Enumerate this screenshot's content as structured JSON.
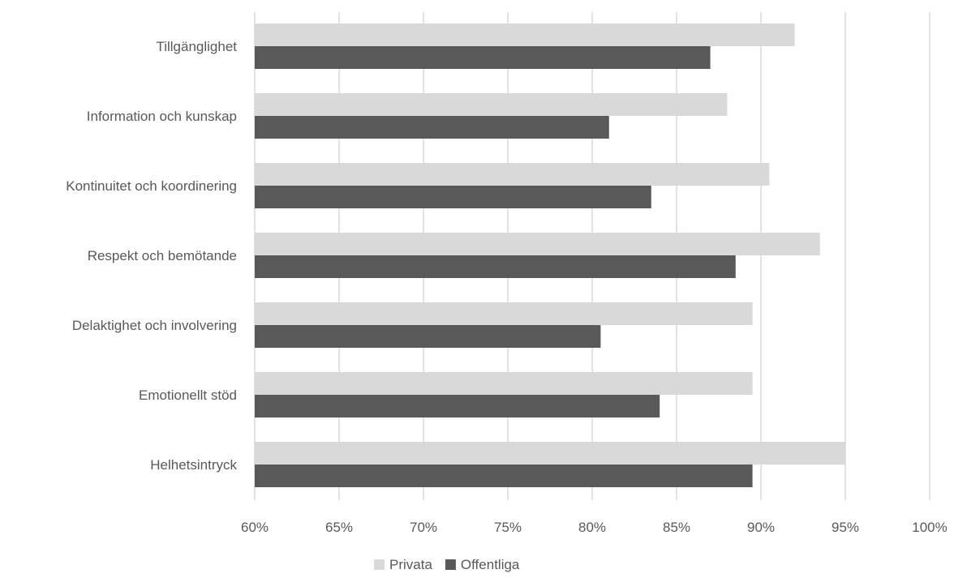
{
  "chart_data": {
    "type": "bar",
    "orientation": "horizontal",
    "categories": [
      "Tillgänglighet",
      "Information och kunskap",
      "Kontinuitet och koordinering",
      "Respekt och bemötande",
      "Delaktighet och involvering",
      "Emotionellt stöd",
      "Helhetsintryck"
    ],
    "series": [
      {
        "name": "Privata",
        "color": "#d9d9d9",
        "values": [
          92,
          88,
          90.5,
          93.5,
          89.5,
          89.5,
          95
        ]
      },
      {
        "name": "Offentliga",
        "color": "#595959",
        "values": [
          87,
          81,
          83.5,
          88.5,
          80.5,
          84,
          89.5
        ]
      }
    ],
    "xlim": [
      60,
      100
    ],
    "xticks": [
      60,
      65,
      70,
      75,
      80,
      85,
      90,
      95,
      100
    ],
    "tick_format": "{v}%",
    "grid": true,
    "legend_position": "bottom",
    "title": "",
    "xlabel": "",
    "ylabel": ""
  }
}
